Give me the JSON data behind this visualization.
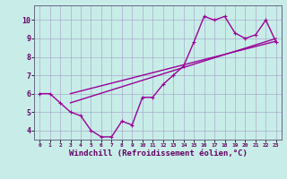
{
  "xlabel": "Windchill (Refroidissement éolien,°C)",
  "bg_color": "#c8ede8",
  "grid_color": "#aaaacc",
  "line_color": "#990099",
  "spine_color": "#666688",
  "xlim": [
    -0.5,
    23.5
  ],
  "ylim": [
    3.5,
    10.8
  ],
  "xticks": [
    0,
    1,
    2,
    3,
    4,
    5,
    6,
    7,
    8,
    9,
    10,
    11,
    12,
    13,
    14,
    15,
    16,
    17,
    18,
    19,
    20,
    21,
    22,
    23
  ],
  "yticks": [
    4,
    5,
    6,
    7,
    8,
    9,
    10
  ],
  "line1_x": [
    0,
    1,
    2,
    3,
    4,
    5,
    6,
    7,
    8,
    9,
    10,
    11,
    12,
    13,
    14,
    15,
    16,
    17,
    18,
    19,
    20,
    21,
    22,
    23
  ],
  "line1_y": [
    6.0,
    6.0,
    5.5,
    5.0,
    4.8,
    4.0,
    3.65,
    3.65,
    4.5,
    4.3,
    5.8,
    5.8,
    6.5,
    7.0,
    7.5,
    8.8,
    10.2,
    10.0,
    10.2,
    9.3,
    9.0,
    9.2,
    10.0,
    8.8
  ],
  "line2_x": [
    3,
    23
  ],
  "line2_y": [
    6.0,
    8.85
  ],
  "line3_x": [
    3,
    23
  ],
  "line3_y": [
    5.5,
    9.0
  ],
  "markersize": 2.5,
  "linewidth": 1.0,
  "xlabel_color": "#660066",
  "xlabel_fontsize": 6.5
}
